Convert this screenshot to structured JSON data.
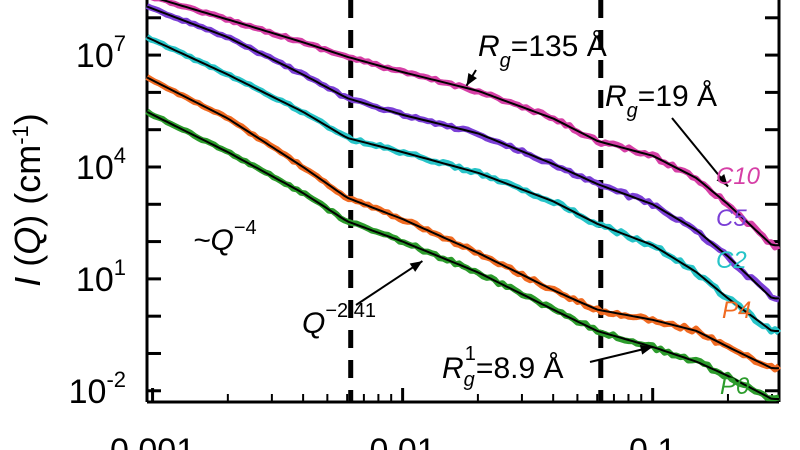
{
  "chart_data": {
    "type": "line",
    "title": "",
    "xlabel": "",
    "ylabel": {
      "main": "I",
      "paren_var": "Q",
      "unit": "cm",
      "unit_exp": "-1"
    },
    "xscale": "log",
    "yscale": "log",
    "xlim": [
      0.00095,
      0.32
    ],
    "ylim": [
      0.005,
      300000000
    ],
    "x_ticks": [
      {
        "value": 0.001,
        "label": "0.001"
      },
      {
        "value": 0.01,
        "label": "0.01"
      },
      {
        "value": 0.1,
        "label": "0.1"
      }
    ],
    "y_ticks": [
      {
        "value": 0.01,
        "base": "10",
        "exp": "-2"
      },
      {
        "value": 10,
        "base": "10",
        "exp": "1"
      },
      {
        "value": 10000,
        "base": "10",
        "exp": "4"
      },
      {
        "value": 10000000,
        "base": "10",
        "exp": "7"
      }
    ],
    "vertical_lines": [
      0.0062,
      0.062
    ],
    "series": [
      {
        "name": "C10",
        "color": "#d63fa6",
        "x": [
          0.00095,
          0.002,
          0.004,
          0.006,
          0.01,
          0.02,
          0.04,
          0.06,
          0.1,
          0.15,
          0.2,
          0.3
        ],
        "y": [
          400000000,
          90000000,
          22000000,
          9000000,
          3500000,
          1100000,
          200000,
          50000,
          20000,
          5000,
          1000,
          80
        ]
      },
      {
        "name": "C5",
        "color": "#7b3fd6",
        "x": [
          0.00095,
          0.002,
          0.004,
          0.006,
          0.01,
          0.02,
          0.04,
          0.06,
          0.1,
          0.15,
          0.2,
          0.3
        ],
        "y": [
          200000000,
          30000000,
          3000000,
          700000,
          250000,
          80000,
          12000,
          3500,
          1000,
          200,
          40,
          3
        ]
      },
      {
        "name": "C2",
        "color": "#27c4c8",
        "x": [
          0.00095,
          0.002,
          0.004,
          0.006,
          0.01,
          0.02,
          0.04,
          0.06,
          0.1,
          0.15,
          0.2,
          0.3
        ],
        "y": [
          30000000,
          3000000,
          300000,
          60000,
          25000,
          7000,
          1200,
          300,
          80,
          15,
          3,
          0.4
        ]
      },
      {
        "name": "P4",
        "color": "#f06a21",
        "x": [
          0.00095,
          0.002,
          0.004,
          0.006,
          0.01,
          0.02,
          0.04,
          0.06,
          0.1,
          0.15,
          0.2,
          0.3
        ],
        "y": [
          2500000,
          200000,
          10000,
          1500,
          400,
          50,
          5,
          1.5,
          0.8,
          0.4,
          0.15,
          0.04
        ]
      },
      {
        "name": "P0",
        "color": "#2c9c2c",
        "x": [
          0.00095,
          0.002,
          0.004,
          0.006,
          0.01,
          0.02,
          0.04,
          0.06,
          0.1,
          0.15,
          0.2,
          0.3
        ],
        "y": [
          300000,
          25000,
          2000,
          350,
          100,
          15,
          1.5,
          0.4,
          0.15,
          0.06,
          0.025,
          0.006
        ]
      }
    ],
    "annotations": [
      {
        "id": "rg135",
        "prefix": "R",
        "sub": "g",
        "sup": "",
        "suffix": "=135 Å",
        "arrow_to": [
          0.018,
          1500000
        ]
      },
      {
        "id": "rg19",
        "prefix": "R",
        "sub": "g",
        "sup": "",
        "suffix": "=19 Å",
        "arrow_to": [
          0.2,
          3000
        ]
      },
      {
        "id": "rg1",
        "prefix": "R",
        "sub": "g",
        "sup": "1",
        "suffix": "=8.9 Å",
        "arrow_to": [
          0.1,
          0.15
        ]
      },
      {
        "id": "q4",
        "prefix": "~Q",
        "sub": "",
        "sup": "−4",
        "suffix": ""
      },
      {
        "id": "q241",
        "prefix": "Q",
        "sub": "",
        "sup": "−2.41",
        "suffix": "",
        "arrow_to": [
          0.012,
          30
        ]
      }
    ]
  }
}
